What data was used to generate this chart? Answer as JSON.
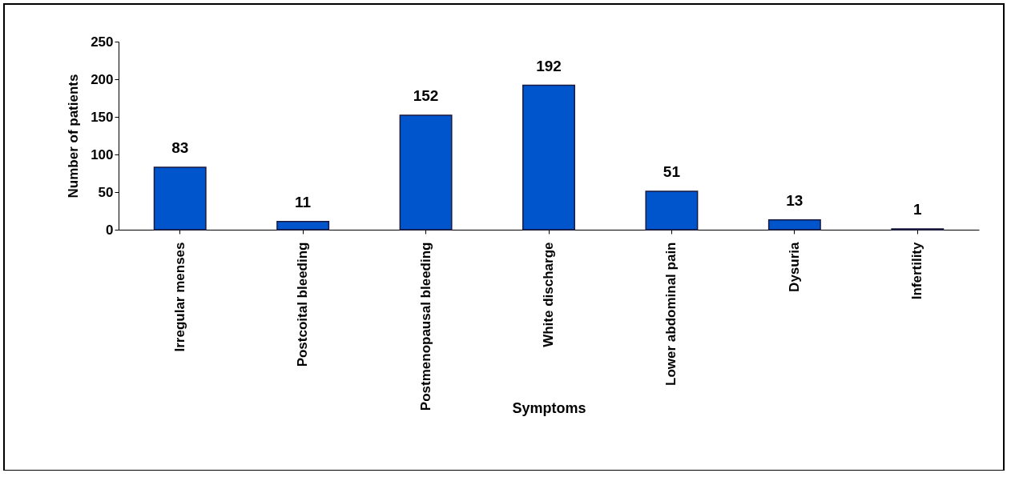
{
  "chart_data": {
    "type": "bar",
    "xlabel": "Symptoms",
    "ylabel": "Number of patients",
    "categories": [
      "Irregular menses",
      "Postcoital bleeding",
      "Postmenopausal bleeding",
      "White discharge",
      "Lower abdominal pain",
      "Dysuria",
      "Infertility"
    ],
    "values": [
      83,
      11,
      152,
      192,
      51,
      13,
      1
    ],
    "color": "#0055cc",
    "ylim": [
      0,
      250
    ],
    "yticks": [
      0,
      50,
      100,
      150,
      200,
      250
    ],
    "grid": false,
    "data_labels": true
  }
}
